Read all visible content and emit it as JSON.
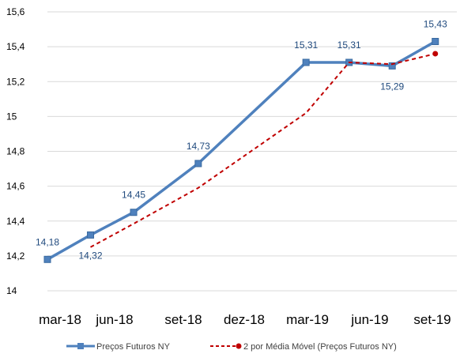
{
  "chart_data": {
    "type": "line",
    "x": [
      "2018-03",
      "2018-04",
      "2018-06",
      "2018-09",
      "2019-03",
      "2019-06",
      "2019-07",
      "2019-10"
    ],
    "x_ticks": [
      "mar-18",
      "jun-18",
      "set-18",
      "dez-18",
      "mar-19",
      "jun-19",
      "set-19"
    ],
    "y_ticks": [
      "14",
      "14,2",
      "14,4",
      "14,6",
      "14,8",
      "15",
      "15,2",
      "15,4",
      "15,6"
    ],
    "ylim": [
      14,
      15.6
    ],
    "grid": true,
    "legend_position": "bottom",
    "series": [
      {
        "name": "Preços Futuros NY",
        "color": "#4F81BD",
        "marker": "square",
        "points": [
          {
            "x": "2018-03",
            "y": 14.18
          },
          {
            "x": "2018-05",
            "y": 14.32
          },
          {
            "x": "2018-07",
            "y": 14.45
          },
          {
            "x": "2018-10",
            "y": 14.73
          },
          {
            "x": "2019-03",
            "y": 15.31
          },
          {
            "x": "2019-05",
            "y": 15.31
          },
          {
            "x": "2019-07",
            "y": 15.29
          },
          {
            "x": "2019-09",
            "y": 15.43
          }
        ]
      },
      {
        "name": "2 por Média Móvel (Preços Futuros NY)",
        "color": "#C00000",
        "dashed": true,
        "points": [
          {
            "x": "2018-05",
            "y": 14.25
          },
          {
            "x": "2018-07",
            "y": 14.385
          },
          {
            "x": "2018-10",
            "y": 14.59
          },
          {
            "x": "2019-03",
            "y": 15.02
          },
          {
            "x": "2019-05",
            "y": 15.31
          },
          {
            "x": "2019-07",
            "y": 15.3
          },
          {
            "x": "2019-09",
            "y": 15.36
          }
        ]
      }
    ],
    "data_labels": [
      {
        "text": "14,18",
        "x": "2018-03",
        "y": 14.18,
        "pos": "above"
      },
      {
        "text": "14,32",
        "x": "2018-05",
        "y": 14.32,
        "pos": "below"
      },
      {
        "text": "14,45",
        "x": "2018-07",
        "y": 14.45,
        "pos": "above"
      },
      {
        "text": "14,73",
        "x": "2018-10",
        "y": 14.73,
        "pos": "above"
      },
      {
        "text": "15,31",
        "x": "2019-03",
        "y": 15.31,
        "pos": "above"
      },
      {
        "text": "15,31",
        "x": "2019-05",
        "y": 15.31,
        "pos": "above"
      },
      {
        "text": "15,29",
        "x": "2019-07",
        "y": 15.29,
        "pos": "below"
      },
      {
        "text": "15,43",
        "x": "2019-09",
        "y": 15.43,
        "pos": "above"
      }
    ]
  }
}
